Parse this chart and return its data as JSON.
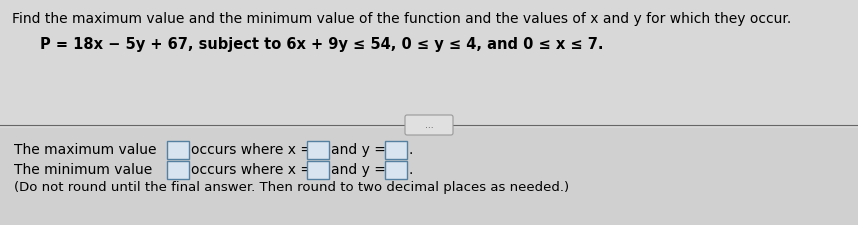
{
  "bg_color": "#c8c8c8",
  "bg_color_light": "#e8e8e8",
  "line1": "Find the maximum value and the minimum value of the function and the values of x and y for which they occur.",
  "line2": "P = 18x − 5y + 67, subject to 6x + 9y ≤ 54, 0 ≤ y ≤ 4, and 0 ≤ x ≤ 7.",
  "dots_label": "...",
  "max_prefix": "The maximum value",
  "occurs1": "occurs where x =",
  "andy1": "and y =",
  "period1": ".",
  "min_prefix": "The minimum value",
  "occurs2": "occurs where x =",
  "andy2": "and y =",
  "period2": ".",
  "note": "(Do not round until the final answer. Then round to two decimal places as needed.)",
  "font_size_top": 10.0,
  "font_size_eq": 10.5,
  "font_size_body": 10.0,
  "font_size_note": 9.5,
  "box_face": "#d8e4f0",
  "box_edge": "#5580a0",
  "divider_color": "#666666"
}
